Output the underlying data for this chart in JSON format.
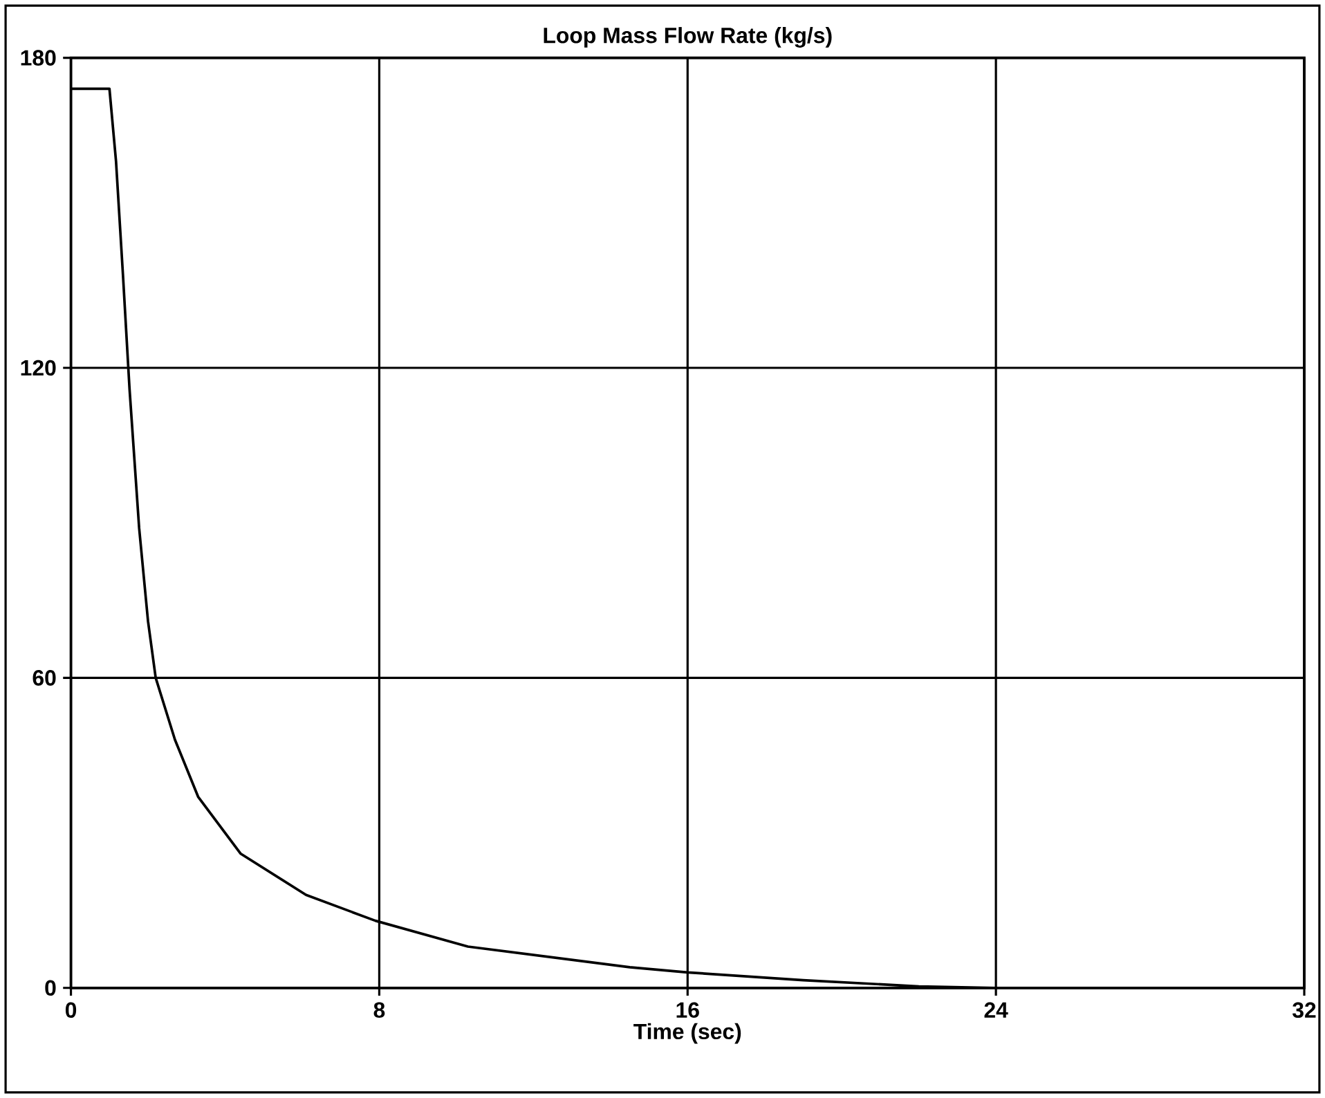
{
  "chart_data": {
    "type": "line",
    "title": "Loop Mass Flow Rate (kg/s)",
    "xlabel": "Time (sec)",
    "x": [
      0,
      1.0,
      1.17,
      1.35,
      1.52,
      1.77,
      2.0,
      2.2,
      2.7,
      3.3,
      4.4,
      6.1,
      7.9,
      10.3,
      14.5,
      16,
      19,
      22,
      24,
      32
    ],
    "series": [
      {
        "color": "#000000",
        "values": [
          174,
          174,
          160,
          138,
          116,
          89,
          71,
          60,
          48,
          37,
          26,
          18,
          13,
          8,
          4,
          3,
          1.5,
          0.3,
          0,
          0
        ]
      }
    ],
    "xlim": [
      0,
      32
    ],
    "ylim": [
      0,
      180
    ],
    "xticks": [
      0,
      8,
      16,
      24,
      32
    ],
    "yticks": [
      0,
      60,
      120,
      180
    ],
    "grid": true,
    "marker": "none",
    "line_style": "solid"
  }
}
